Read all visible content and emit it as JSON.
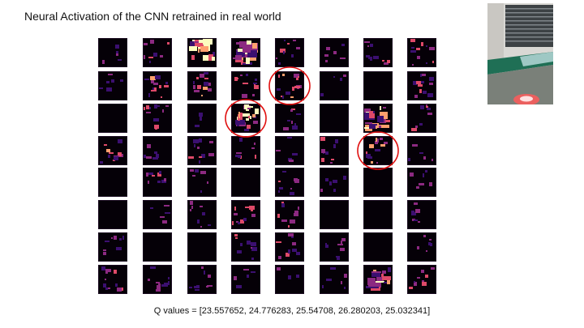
{
  "slide": {
    "title": "Neural Activation of the CNN retrained in real world",
    "q_values_text": "Q values = [23.557652,  24.776283, 25.54708,  26.280203, 25.032341]"
  },
  "activation_grid": {
    "rows": 8,
    "cols": 8,
    "colormap": [
      "#000004",
      "#3b0f70",
      "#8c2981",
      "#de4968",
      "#fe9f6d",
      "#fcfdbf"
    ],
    "highlighted_cells": [
      [
        1,
        4
      ],
      [
        2,
        3
      ],
      [
        3,
        6
      ]
    ],
    "highlight_color": "#e01010",
    "intensity": [
      [
        0.15,
        0.25,
        0.75,
        0.9,
        0.3,
        0.2,
        0.35,
        0.4
      ],
      [
        0.2,
        0.5,
        0.55,
        0.4,
        0.55,
        0.1,
        0.0,
        0.45
      ],
      [
        0.0,
        0.4,
        0.05,
        0.95,
        0.25,
        0.0,
        0.85,
        0.3
      ],
      [
        0.45,
        0.2,
        0.35,
        0.25,
        0.15,
        0.3,
        0.55,
        0.15
      ],
      [
        0.0,
        0.3,
        0.2,
        0.0,
        0.25,
        0.2,
        0.0,
        0.2
      ],
      [
        0.0,
        0.15,
        0.25,
        0.4,
        0.3,
        0.0,
        0.0,
        0.25
      ],
      [
        0.25,
        0.0,
        0.0,
        0.3,
        0.3,
        0.25,
        0.0,
        0.2
      ],
      [
        0.4,
        0.35,
        0.3,
        0.15,
        0.05,
        0.2,
        0.75,
        0.3
      ]
    ]
  },
  "camera_photo": {
    "colors": {
      "wall": "#d9d8d4",
      "blinds": "#3d4245",
      "green_strip": "#1f6f55",
      "floor": "#7a8079",
      "robot_light": "#ff5a5a"
    }
  }
}
